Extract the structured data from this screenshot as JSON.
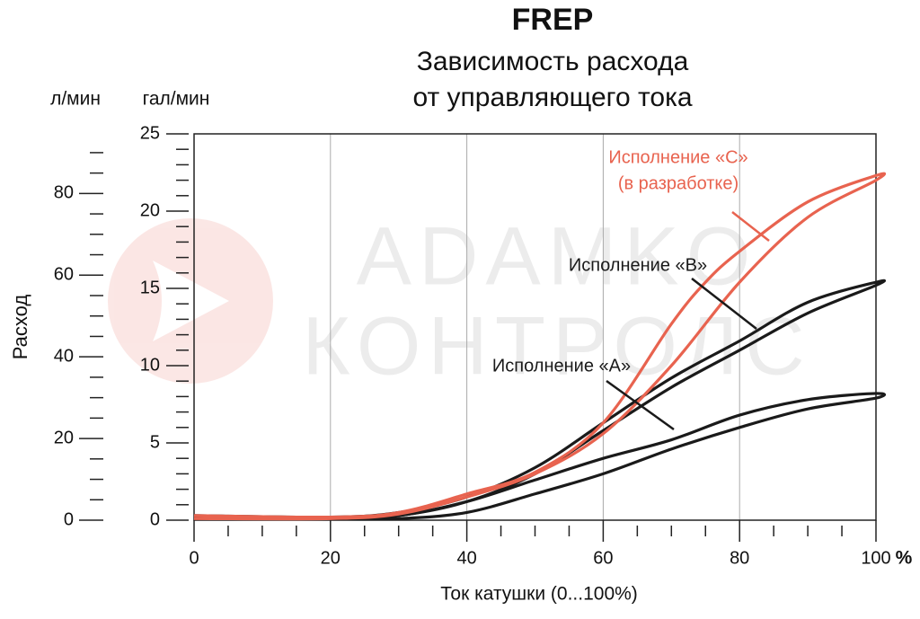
{
  "chart_data": {
    "type": "line",
    "title": "FREP",
    "subtitle": [
      "Зависимость расхода",
      "от управляющего тока"
    ],
    "y_label": "Расход",
    "x_label": "Ток катушки (0...100%)",
    "x_unit": "%",
    "y_unit": "гал/мин",
    "y2_unit": "л/мин",
    "xlim": [
      0,
      100
    ],
    "xticks": [
      0,
      20,
      40,
      60,
      80,
      100
    ],
    "ylim": [
      0,
      25
    ],
    "yticks": [
      0,
      5,
      10,
      15,
      20,
      25
    ],
    "y2lim": [
      0,
      94.6
    ],
    "y2ticks": [
      0,
      20,
      40,
      60,
      80
    ],
    "grid": true,
    "note": "(в разработке)",
    "watermark": [
      "ADAMKO",
      "КОНТРОЛС"
    ],
    "series": [
      {
        "name": "Исполнение «A»",
        "color": "#1a1a1a",
        "x": [
          0,
          20,
          30,
          40,
          50,
          60,
          70,
          80,
          90,
          100,
          100,
          90,
          80,
          70,
          60,
          50,
          40,
          30,
          20,
          0
        ],
        "values": [
          0.1,
          0.1,
          0.1,
          0.5,
          1.7,
          3.0,
          4.6,
          6.0,
          7.2,
          7.9,
          8.2,
          7.8,
          6.8,
          5.2,
          4.0,
          2.6,
          1.2,
          0.3,
          0.1,
          0.2
        ]
      },
      {
        "name": "Исполнение «B»",
        "color": "#1a1a1a",
        "x": [
          0,
          20,
          30,
          40,
          50,
          60,
          70,
          80,
          90,
          100,
          100,
          90,
          80,
          70,
          60,
          50,
          40,
          30,
          20,
          0
        ],
        "values": [
          0.1,
          0.1,
          0.3,
          1.2,
          3.0,
          5.8,
          8.6,
          11.0,
          13.4,
          15.2,
          15.4,
          14.1,
          11.6,
          9.2,
          6.3,
          3.4,
          1.5,
          0.5,
          0.2,
          0.3
        ]
      },
      {
        "name": "Исполнение «C»",
        "color": "#e8634f",
        "x": [
          0,
          20,
          30,
          40,
          50,
          60,
          70,
          80,
          90,
          100,
          100,
          90,
          80,
          75,
          70,
          60,
          50,
          40,
          30,
          20,
          0
        ],
        "values": [
          0.1,
          0.1,
          0.4,
          1.5,
          3.0,
          5.6,
          10.0,
          15.4,
          19.6,
          22.0,
          22.3,
          20.6,
          17.4,
          15.4,
          12.7,
          6.3,
          3.1,
          1.7,
          0.5,
          0.2,
          0.3
        ]
      }
    ]
  }
}
